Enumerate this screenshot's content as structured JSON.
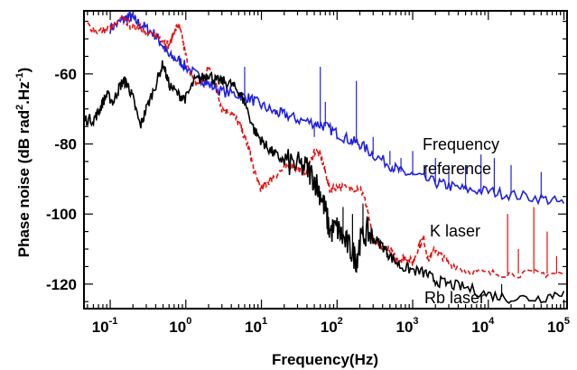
{
  "chart_data": {
    "type": "line",
    "xlabel": "Frequency(Hz)",
    "ylabel": {
      "main": "Phase noise (dB rad",
      "sup1": "2",
      "mid": ".Hz",
      "sup2": "-1",
      "end": ")"
    },
    "x_scale": "log",
    "xlim": [
      0.045,
      110000
    ],
    "ylim": [
      -127,
      -42
    ],
    "grid": false,
    "x_ticks": [
      {
        "value": 0.1,
        "base": "10",
        "exp": "-1"
      },
      {
        "value": 1,
        "base": "10",
        "exp": "0"
      },
      {
        "value": 10,
        "base": "10",
        "exp": "1"
      },
      {
        "value": 100,
        "base": "10",
        "exp": "2"
      },
      {
        "value": 1000,
        "base": "10",
        "exp": "3"
      },
      {
        "value": 10000,
        "base": "10",
        "exp": "4"
      },
      {
        "value": 100000,
        "base": "10",
        "exp": "5"
      }
    ],
    "y_ticks": [
      {
        "value": -60,
        "label": "-60"
      },
      {
        "value": -80,
        "label": "-80"
      },
      {
        "value": -100,
        "label": "-100"
      },
      {
        "value": -120,
        "label": "-120"
      }
    ],
    "annotations": [
      {
        "text": "Frequency",
        "series": "Frequency reference"
      },
      {
        "text": "reference",
        "series": "Frequency reference"
      },
      {
        "text": "K laser",
        "series": "K laser"
      },
      {
        "text": "Rb laser",
        "series": "Rb laser"
      }
    ],
    "series": [
      {
        "name": "Frequency reference",
        "color": "#1f1fe0",
        "style": "solid",
        "points": [
          [
            0.1,
            -47
          ],
          [
            0.14,
            -45
          ],
          [
            0.18,
            -43.5
          ],
          [
            0.22,
            -45
          ],
          [
            0.3,
            -47
          ],
          [
            0.4,
            -49
          ],
          [
            0.5,
            -52
          ],
          [
            0.6,
            -55
          ],
          [
            0.8,
            -56
          ],
          [
            1,
            -58
          ],
          [
            1.5,
            -61
          ],
          [
            2,
            -63
          ],
          [
            3,
            -65
          ],
          [
            5,
            -66
          ],
          [
            7,
            -67
          ],
          [
            10,
            -69
          ],
          [
            15,
            -71
          ],
          [
            20,
            -71.5
          ],
          [
            30,
            -73
          ],
          [
            50,
            -74
          ],
          [
            70,
            -75
          ],
          [
            100,
            -77
          ],
          [
            150,
            -79
          ],
          [
            200,
            -80
          ],
          [
            300,
            -83
          ],
          [
            500,
            -86
          ],
          [
            700,
            -88
          ],
          [
            1000,
            -89
          ],
          [
            2000,
            -91
          ],
          [
            3000,
            -92
          ],
          [
            5000,
            -93
          ],
          [
            10000,
            -93.5
          ],
          [
            20000,
            -94.5
          ],
          [
            50000,
            -95.5
          ],
          [
            100000,
            -97
          ]
        ],
        "spikes": [
          [
            6,
            -58
          ],
          [
            50,
            -78
          ],
          [
            60,
            -58
          ],
          [
            70,
            -68
          ],
          [
            120,
            -78
          ],
          [
            180,
            -62
          ],
          [
            300,
            -78
          ],
          [
            500,
            -82
          ],
          [
            700,
            -84
          ],
          [
            1000,
            -82
          ],
          [
            1500,
            -86
          ],
          [
            2000,
            -84
          ],
          [
            3000,
            -86
          ],
          [
            5000,
            -86
          ],
          [
            8000,
            -83
          ],
          [
            12000,
            -84
          ],
          [
            20000,
            -86
          ],
          [
            50000,
            -88
          ]
        ]
      },
      {
        "name": "K laser",
        "color": "#e01010",
        "style": "dashed",
        "points": [
          [
            0.05,
            -46
          ],
          [
            0.07,
            -48
          ],
          [
            0.1,
            -47
          ],
          [
            0.15,
            -44
          ],
          [
            0.2,
            -47
          ],
          [
            0.25,
            -46
          ],
          [
            0.3,
            -49
          ],
          [
            0.4,
            -49
          ],
          [
            0.5,
            -50
          ],
          [
            0.6,
            -52
          ],
          [
            0.7,
            -48
          ],
          [
            0.8,
            -46
          ],
          [
            0.9,
            -50
          ],
          [
            1,
            -55
          ],
          [
            1.3,
            -63
          ],
          [
            1.7,
            -62
          ],
          [
            2,
            -58
          ],
          [
            2.5,
            -63
          ],
          [
            3,
            -70
          ],
          [
            4,
            -71
          ],
          [
            5,
            -74
          ],
          [
            6,
            -78
          ],
          [
            7,
            -82
          ],
          [
            8,
            -88
          ],
          [
            10,
            -93
          ],
          [
            12,
            -91
          ],
          [
            15,
            -89
          ],
          [
            20,
            -87
          ],
          [
            25,
            -86
          ],
          [
            30,
            -87
          ],
          [
            40,
            -88
          ],
          [
            50,
            -82
          ],
          [
            60,
            -83
          ],
          [
            70,
            -88
          ],
          [
            80,
            -93
          ],
          [
            100,
            -92
          ],
          [
            150,
            -93
          ],
          [
            200,
            -92
          ],
          [
            250,
            -98
          ],
          [
            300,
            -108
          ],
          [
            400,
            -110
          ],
          [
            500,
            -110
          ],
          [
            600,
            -113
          ],
          [
            700,
            -113
          ],
          [
            800,
            -112
          ],
          [
            1000,
            -114
          ],
          [
            1200,
            -109
          ],
          [
            1400,
            -107
          ],
          [
            1600,
            -113
          ],
          [
            2000,
            -110
          ],
          [
            2400,
            -112
          ],
          [
            3000,
            -114
          ],
          [
            5000,
            -116
          ],
          [
            10000,
            -117
          ],
          [
            20000,
            -117
          ],
          [
            50000,
            -117
          ],
          [
            100000,
            -117
          ]
        ],
        "spikes": [
          [
            18000,
            -100
          ],
          [
            25000,
            -110
          ],
          [
            40000,
            -98
          ],
          [
            60000,
            -105
          ],
          [
            80000,
            -112
          ]
        ]
      },
      {
        "name": "Rb laser",
        "color": "#000000",
        "style": "solid",
        "points": [
          [
            0.045,
            -73
          ],
          [
            0.06,
            -73
          ],
          [
            0.07,
            -71
          ],
          [
            0.08,
            -68
          ],
          [
            0.09,
            -66
          ],
          [
            0.11,
            -68
          ],
          [
            0.13,
            -64
          ],
          [
            0.15,
            -62
          ],
          [
            0.17,
            -63
          ],
          [
            0.2,
            -67
          ],
          [
            0.25,
            -75
          ],
          [
            0.3,
            -70
          ],
          [
            0.4,
            -63
          ],
          [
            0.5,
            -57
          ],
          [
            0.6,
            -63
          ],
          [
            0.8,
            -66
          ],
          [
            1,
            -67
          ],
          [
            1.3,
            -62
          ],
          [
            1.7,
            -61
          ],
          [
            2,
            -60
          ],
          [
            2.5,
            -62
          ],
          [
            3,
            -62
          ],
          [
            4,
            -63
          ],
          [
            5,
            -65
          ],
          [
            6,
            -68
          ],
          [
            8,
            -76
          ],
          [
            10,
            -79
          ],
          [
            12,
            -81
          ],
          [
            15,
            -83
          ],
          [
            20,
            -85
          ],
          [
            30,
            -86
          ],
          [
            40,
            -87
          ],
          [
            50,
            -90
          ],
          [
            60,
            -94
          ],
          [
            70,
            -99
          ],
          [
            80,
            -105
          ],
          [
            100,
            -104
          ],
          [
            120,
            -107
          ],
          [
            150,
            -110
          ],
          [
            180,
            -113
          ],
          [
            200,
            -108
          ],
          [
            250,
            -105
          ],
          [
            300,
            -107
          ],
          [
            400,
            -109
          ],
          [
            500,
            -112
          ],
          [
            700,
            -115
          ],
          [
            1000,
            -116
          ],
          [
            1500,
            -117
          ],
          [
            2000,
            -119
          ],
          [
            3000,
            -120
          ],
          [
            5000,
            -121
          ],
          [
            10000,
            -123
          ],
          [
            20000,
            -124
          ],
          [
            50000,
            -124
          ],
          [
            100000,
            -122
          ]
        ],
        "spikes": [
          [
            120,
            -98
          ],
          [
            160,
            -100
          ],
          [
            220,
            -97
          ],
          [
            15000,
            -120
          ]
        ]
      }
    ]
  }
}
